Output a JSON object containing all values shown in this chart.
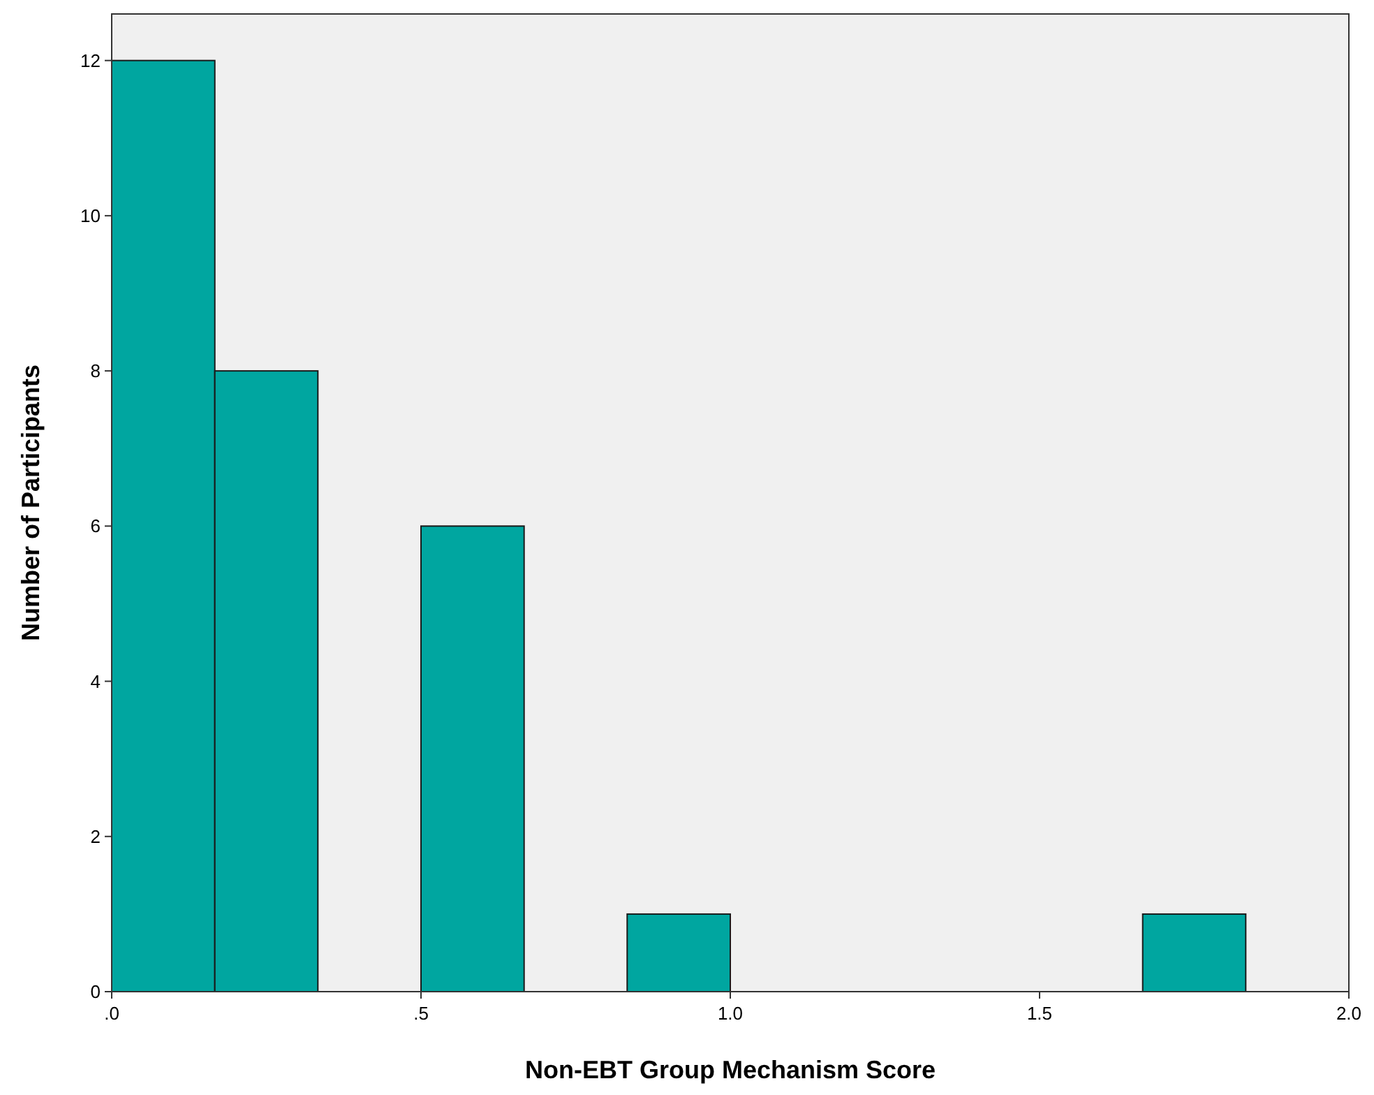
{
  "chart_data": {
    "type": "histogram",
    "xlabel": "Non-EBT Group Mechanism Score",
    "ylabel": "Number of Participants",
    "bins": [
      0,
      0.1667,
      0.3333,
      0.5,
      0.6667,
      0.8333,
      1.0,
      1.1667,
      1.3333,
      1.5,
      1.6667,
      1.8333,
      2.0
    ],
    "values": [
      12,
      8,
      0,
      6,
      0,
      1,
      0,
      0,
      0,
      0,
      1,
      0
    ],
    "color": "#00a6a0",
    "xlim": [
      0,
      2.0
    ],
    "xticks": [
      {
        "value": 0,
        "label": ".0"
      },
      {
        "value": 0.5,
        "label": ".5"
      },
      {
        "value": 1.0,
        "label": "1.0"
      },
      {
        "value": 1.5,
        "label": "1.5"
      },
      {
        "value": 2.0,
        "label": "2.0"
      }
    ],
    "ylim": [
      0,
      12.6
    ],
    "yticks": [
      0,
      2,
      4,
      6,
      8,
      10,
      12
    ],
    "grid": false
  }
}
